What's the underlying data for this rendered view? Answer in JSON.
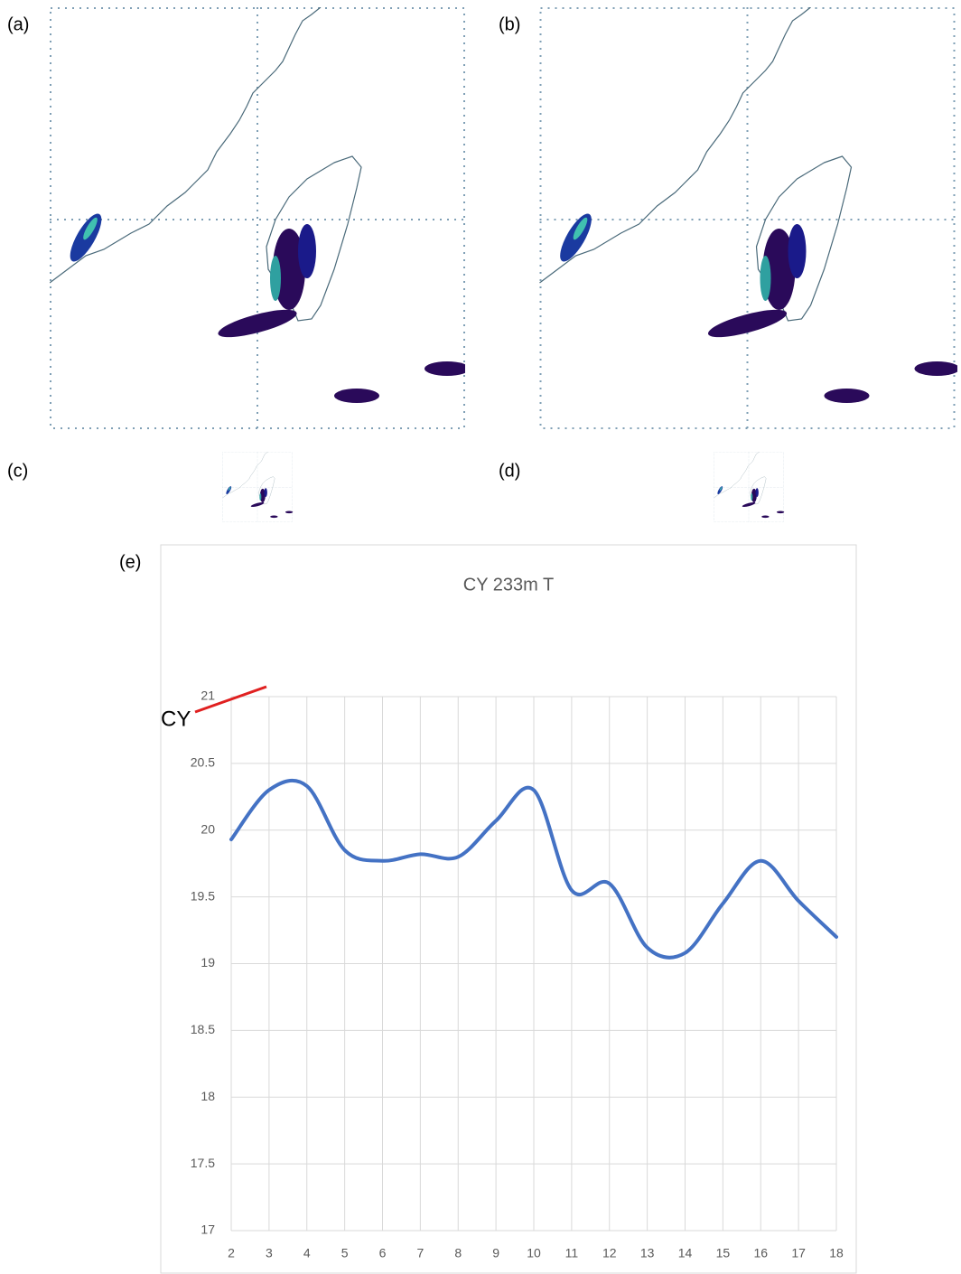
{
  "panels": [
    {
      "label": "(a)"
    },
    {
      "label": "(b)"
    },
    {
      "label": "(c)"
    },
    {
      "label": "(d)"
    },
    {
      "label": "(e)"
    }
  ],
  "annotation": "CY",
  "chart_data": {
    "type": "line",
    "title": "CY 233m T",
    "x": [
      2,
      3,
      4,
      5,
      6,
      7,
      8,
      9,
      10,
      11,
      12,
      13,
      14,
      15,
      16,
      17,
      18
    ],
    "values": [
      19.93,
      20.3,
      20.33,
      19.85,
      19.77,
      19.82,
      19.8,
      20.07,
      20.3,
      19.55,
      19.6,
      19.12,
      19.08,
      19.45,
      19.77,
      19.47,
      19.2
    ],
    "color": "#4472c4",
    "xlim": [
      2,
      18
    ],
    "xticks": [
      2,
      3,
      4,
      5,
      6,
      7,
      8,
      9,
      10,
      11,
      12,
      13,
      14,
      15,
      16,
      17,
      18
    ],
    "ylim": [
      17,
      21
    ],
    "yticks": [
      17,
      17.5,
      18,
      18.5,
      19,
      19.5,
      20,
      20.5,
      21
    ],
    "grid": true
  }
}
